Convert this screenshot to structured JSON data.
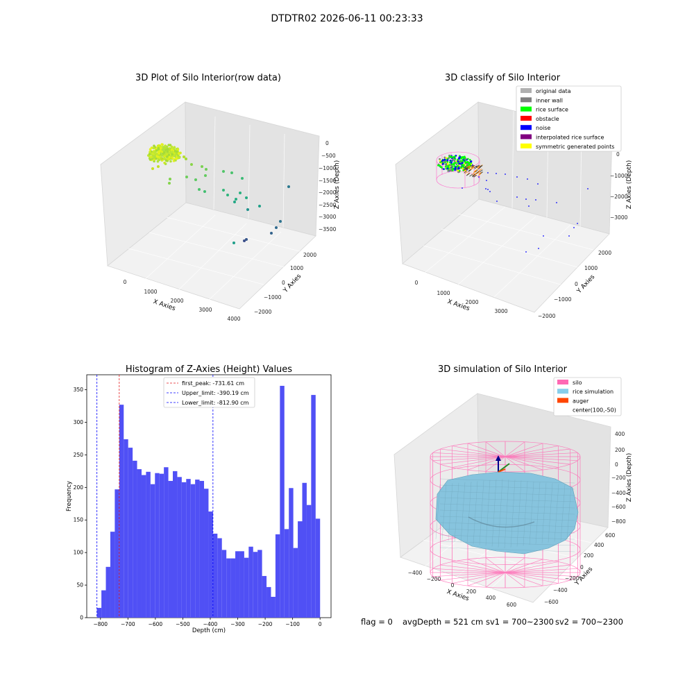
{
  "suptitle": "DTDTR02 2026-06-11 00:23:33",
  "footer": {
    "flag": "flag = 0",
    "avg_depth": "avgDepth = 521 cm",
    "sv1": "sv1 = 700~2300",
    "sv2": "sv2 = 700~2300"
  },
  "colors": {
    "hist_bar": "#5050f5",
    "first_peak_line": "#e41a1c",
    "limit_line": "#0000ff",
    "silo_wire": "#ff69b4",
    "rice_surface": "#87c4de",
    "auger": "#ff4500"
  },
  "chart_data": [
    {
      "type": "scatter3d",
      "title": "3D Plot of Silo Interior(row data)",
      "xlabel": "X Axies",
      "ylabel": "Y Axies",
      "zlabel": "Z Axies (Depth)",
      "x_ticks": [
        "0",
        "1000",
        "2000",
        "3000",
        "4000"
      ],
      "y_ticks": [
        "−2000",
        "−1000",
        "0",
        "1000",
        "2000"
      ],
      "z_ticks": [
        "0",
        "−500",
        "−1000",
        "−1500",
        "−2000",
        "−2500",
        "−3000",
        "−3500"
      ],
      "note": "dense yellow-green cluster near the silo top; scattered teal/green points trailing to deep negative depths"
    },
    {
      "type": "scatter3d",
      "title": "3D classify of Silo Interior",
      "xlabel": "X Axies",
      "ylabel": "Y Axies",
      "zlabel": "Z Axies (Depth)",
      "x_ticks": [
        "0",
        "1000",
        "2000",
        "3000"
      ],
      "y_ticks": [
        "−2000",
        "−1000",
        "0",
        "1000",
        "2000"
      ],
      "z_ticks": [
        "0",
        "−1000",
        "−2000",
        "−3000"
      ],
      "legend_position": "top-right",
      "legend": [
        {
          "label": "original data",
          "color": "#b0b0b0"
        },
        {
          "label": "inner wall",
          "color": "#808080"
        },
        {
          "label": "rice surface",
          "color": "#00ff00"
        },
        {
          "label": "obstacle",
          "color": "#ff0000"
        },
        {
          "label": "noise",
          "color": "#0000ff"
        },
        {
          "label": "interpolated rice surface",
          "color": "#800080"
        },
        {
          "label": "symmetric generated points",
          "color": "#ffff00"
        }
      ]
    },
    {
      "type": "bar",
      "title": "Histogram of Z-Axies (Height) Values",
      "xlabel": "Depth (cm)",
      "ylabel": "Frequency",
      "xlim": [
        -850,
        40
      ],
      "ylim": [
        0,
        373
      ],
      "x_ticks": [
        -800,
        -700,
        -600,
        -500,
        -400,
        -300,
        -200,
        -100,
        0
      ],
      "x_tick_labels": [
        "−800",
        "−700",
        "−600",
        "−500",
        "−400",
        "−300",
        "−200",
        "−100",
        "0"
      ],
      "y_ticks": [
        0,
        50,
        100,
        150,
        200,
        250,
        300,
        350
      ],
      "bin_start": -812.9,
      "bin_width": 16.26,
      "values": [
        15,
        42,
        78,
        132,
        197,
        327,
        274,
        261,
        241,
        228,
        219,
        224,
        205,
        222,
        221,
        231,
        210,
        225,
        216,
        208,
        213,
        205,
        212,
        210,
        198,
        163,
        129,
        122,
        104,
        91,
        91,
        102,
        102,
        92,
        109,
        101,
        104,
        64,
        47,
        32,
        128,
        356,
        136,
        199,
        107,
        148,
        207,
        173,
        342,
        152
      ],
      "vlines": [
        {
          "label": "first_peak: -731.61 cm",
          "x": -731.61,
          "color": "#e41a1c"
        },
        {
          "label": "Upper_limit: -390.19 cm",
          "x": -390.19,
          "color": "#0000ff"
        },
        {
          "label": "Lower_limit: -812.90 cm",
          "x": -812.9,
          "color": "#0000ff"
        }
      ],
      "legend_position": "top-center"
    },
    {
      "type": "surface3d",
      "title": "3D simulation of Silo Interior",
      "xlabel": "X Axies",
      "ylabel": "Y Axies",
      "zlabel": "Z Axies (Depth)",
      "x_ticks": [
        "−400",
        "−200",
        "0",
        "200",
        "400",
        "600"
      ],
      "y_ticks": [
        "−600",
        "−400",
        "−200",
        "0",
        "200",
        "400",
        "600"
      ],
      "z_ticks": [
        "400",
        "200",
        "0",
        "−200",
        "−400",
        "−600",
        "−800"
      ],
      "legend_position": "top-right",
      "legend": [
        {
          "label": "silo",
          "color": "#ff69b4"
        },
        {
          "label": "rice simulation",
          "color": "#87ceeb"
        },
        {
          "label": "auger",
          "color": "#ff4500"
        },
        {
          "label": "center(100,-50)",
          "color": ""
        }
      ]
    }
  ]
}
